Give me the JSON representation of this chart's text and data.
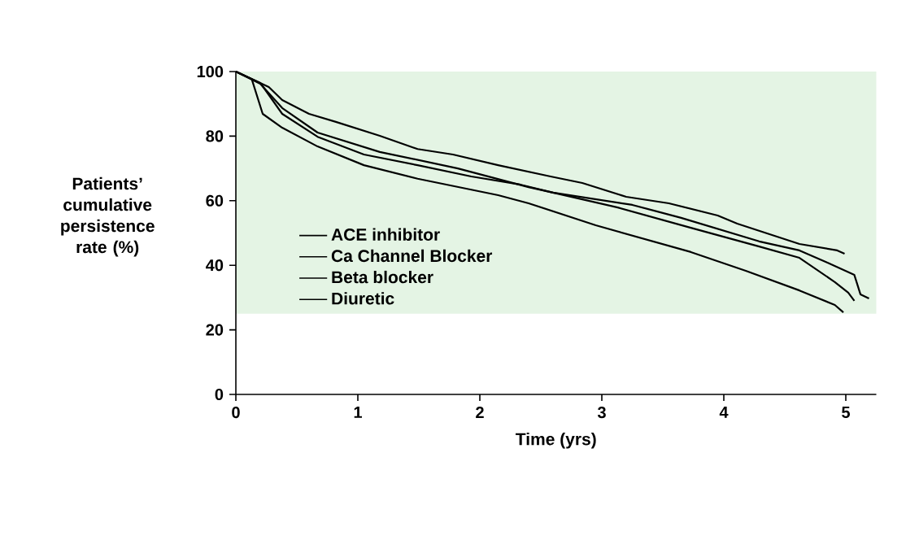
{
  "chart_data": {
    "type": "line",
    "xlabel": "Time (yrs)",
    "ylabel": "Patients’ cumulative persistence rate (%)",
    "xlim": [
      0,
      5.25
    ],
    "xticks": [
      0,
      1,
      2,
      3,
      4,
      5
    ],
    "ylim": [
      0,
      100
    ],
    "yticks": [
      0,
      20,
      40,
      60,
      80,
      100
    ],
    "legend": "left",
    "line_style": "solid",
    "marker": "none",
    "grid": false,
    "bands": [
      {
        "axis": "y",
        "from": 25,
        "to": 100,
        "color": "#e4f4e4"
      }
    ],
    "series": [
      {
        "name": "ACE inhibitor",
        "color": "#000000",
        "x": [
          0,
          0.27,
          0.38,
          0.6,
          0.82,
          1.18,
          1.49,
          1.78,
          2.15,
          2.58,
          2.84,
          3.2,
          3.55,
          3.95,
          4.11,
          4.62,
          4.93,
          4.99
        ],
        "values": [
          100,
          95.2,
          91.2,
          86.9,
          84.4,
          80.1,
          76,
          74.3,
          71,
          67.5,
          65.5,
          61.2,
          59.2,
          55.4,
          52.9,
          46.6,
          44.6,
          43.6
        ]
      },
      {
        "name": "Ca Channel Blocker",
        "color": "#000000",
        "x": [
          0,
          0.2,
          0.38,
          0.67,
          1.05,
          1.49,
          1.93,
          2.33,
          2.6,
          3.25,
          3.65,
          4.29,
          4.62,
          4.85,
          5.07,
          5.12,
          5.19
        ],
        "values": [
          100,
          96.5,
          86.9,
          79.8,
          74.3,
          71,
          67.5,
          65,
          62.5,
          58.7,
          54.7,
          47.4,
          44.6,
          40.8,
          37,
          31,
          29.7
        ]
      },
      {
        "name": "Beta blocker",
        "color": "#000000",
        "x": [
          0,
          0.2,
          0.38,
          0.67,
          1.18,
          1.82,
          2.4,
          2.6,
          3.13,
          3.73,
          4.29,
          4.62,
          4.91,
          5.02,
          5.07
        ],
        "values": [
          100,
          96.2,
          88.7,
          81.1,
          75.1,
          70,
          64.2,
          62.5,
          57.9,
          51.6,
          45.8,
          42.3,
          34.8,
          31.5,
          29
        ]
      },
      {
        "name": "Diuretic",
        "color": "#000000",
        "x": [
          0,
          0.13,
          0.22,
          0.38,
          0.67,
          1.05,
          1.49,
          2.15,
          2.4,
          2.95,
          3.73,
          4.18,
          4.62,
          4.91,
          4.98
        ],
        "values": [
          100,
          97.7,
          86.9,
          82.6,
          76.8,
          71,
          66.8,
          61.7,
          59.2,
          52.4,
          44.1,
          38.3,
          32.2,
          27.7,
          25.4
        ]
      }
    ]
  }
}
